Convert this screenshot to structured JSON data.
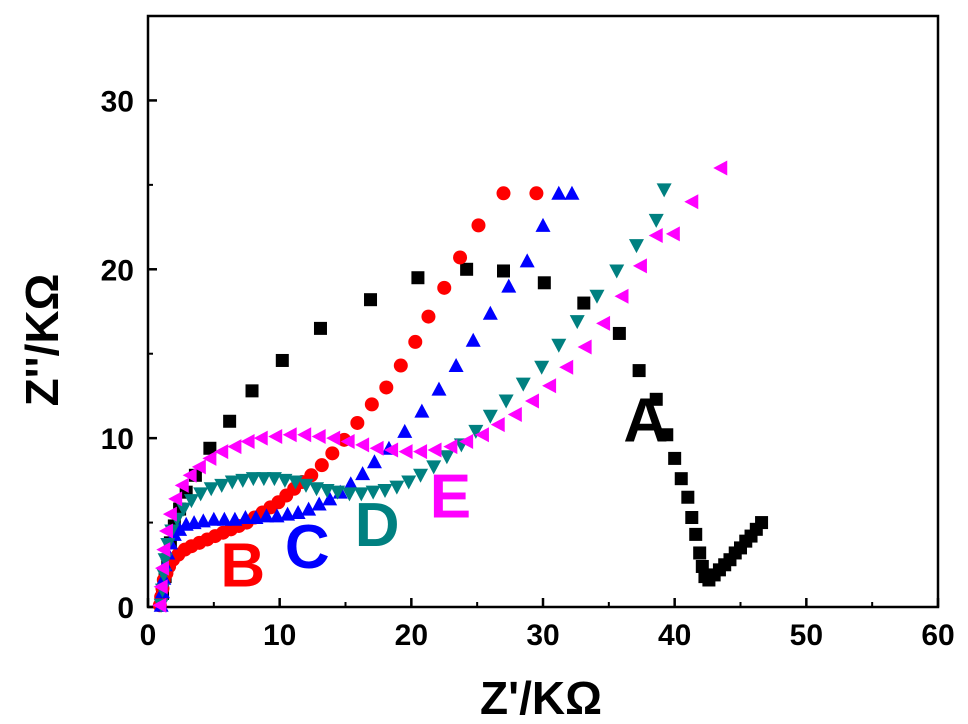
{
  "chart_data": {
    "type": "scatter",
    "title": "",
    "xlabel": "Z'/KΩ",
    "ylabel": "Z''/KΩ",
    "xlim": [
      0,
      60
    ],
    "ylim": [
      0,
      35
    ],
    "xticks": [
      "0",
      "10",
      "20",
      "30",
      "40",
      "50",
      "60"
    ],
    "yticks": [
      "0",
      "10",
      "20",
      "30"
    ],
    "grid": false,
    "legend": "none",
    "series": [
      {
        "name": "A",
        "color": "#000000",
        "marker": "square",
        "x": [
          1.1,
          1.3,
          1.5,
          1.7,
          2.0,
          2.4,
          2.9,
          3.6,
          4.7,
          6.2,
          7.9,
          10.2,
          13.1,
          16.9,
          20.5,
          24.2,
          27.0,
          30.1,
          33.1,
          35.8,
          37.3,
          38.6,
          39.4,
          40.0,
          40.5,
          41.0,
          41.3,
          41.6,
          41.9,
          42.1,
          42.3,
          42.6,
          43.0,
          43.4,
          43.8,
          44.2,
          44.6,
          45.0,
          45.4,
          45.8,
          46.2,
          46.6
        ],
        "y": [
          0.8,
          1.8,
          2.8,
          3.8,
          4.8,
          5.8,
          6.8,
          7.8,
          9.4,
          11.0,
          12.8,
          14.6,
          16.5,
          18.2,
          19.5,
          20.0,
          19.9,
          19.2,
          18.0,
          16.2,
          14.0,
          12.3,
          10.2,
          8.8,
          7.6,
          6.5,
          5.3,
          4.3,
          3.2,
          2.4,
          1.8,
          1.6,
          1.9,
          2.2,
          2.5,
          2.8,
          3.2,
          3.5,
          3.9,
          4.2,
          4.6,
          5.0
        ]
      },
      {
        "name": "B",
        "color": "#ff0000",
        "marker": "circle",
        "x": [
          0.9,
          1.0,
          1.1,
          1.2,
          1.4,
          1.6,
          1.9,
          2.3,
          2.8,
          3.3,
          3.9,
          4.5,
          5.1,
          5.7,
          6.3,
          6.9,
          7.5,
          8.1,
          8.7,
          9.3,
          9.9,
          10.5,
          11.1,
          11.7,
          12.4,
          13.2,
          14.0,
          14.9,
          15.9,
          17.0,
          18.1,
          19.2,
          20.3,
          21.3,
          22.5,
          23.7,
          25.1,
          27.0,
          29.5
        ],
        "y": [
          0.1,
          0.6,
          1.1,
          1.6,
          2.0,
          2.4,
          2.8,
          3.1,
          3.4,
          3.6,
          3.8,
          4.0,
          4.2,
          4.4,
          4.6,
          4.8,
          5.0,
          5.3,
          5.6,
          5.9,
          6.2,
          6.6,
          7.0,
          7.4,
          7.8,
          8.4,
          9.1,
          9.9,
          10.9,
          12.0,
          13.0,
          14.3,
          15.7,
          17.2,
          18.9,
          20.7,
          22.6,
          24.5,
          24.5
        ]
      },
      {
        "name": "C",
        "color": "#0000ff",
        "marker": "triangle-up",
        "x": [
          1.0,
          1.1,
          1.2,
          1.3,
          1.5,
          1.7,
          2.0,
          2.4,
          2.9,
          3.5,
          4.2,
          5.0,
          5.8,
          6.6,
          7.4,
          8.2,
          9.0,
          9.8,
          10.6,
          11.4,
          12.2,
          13.0,
          13.8,
          14.6,
          15.4,
          16.3,
          17.2,
          18.3,
          19.5,
          20.8,
          22.1,
          23.4,
          24.7,
          26.0,
          27.4,
          28.8,
          30.0,
          31.2,
          32.2
        ],
        "y": [
          0.1,
          0.9,
          1.7,
          2.5,
          3.2,
          3.8,
          4.3,
          4.6,
          4.9,
          5.0,
          5.1,
          5.2,
          5.2,
          5.2,
          5.3,
          5.3,
          5.4,
          5.4,
          5.5,
          5.6,
          5.8,
          6.1,
          6.4,
          6.8,
          7.3,
          7.9,
          8.6,
          9.4,
          10.4,
          11.6,
          12.9,
          14.3,
          15.8,
          17.4,
          19.0,
          20.5,
          22.6,
          24.5,
          24.5
        ]
      },
      {
        "name": "D",
        "color": "#008080",
        "marker": "triangle-down",
        "x": [
          1.0,
          1.1,
          1.2,
          1.3,
          1.5,
          1.8,
          2.2,
          2.7,
          3.3,
          4.0,
          4.8,
          5.6,
          6.4,
          7.2,
          8.0,
          8.8,
          9.6,
          10.4,
          11.2,
          12.0,
          12.8,
          13.6,
          14.4,
          15.3,
          16.2,
          17.1,
          18.0,
          18.9,
          19.8,
          20.7,
          21.7,
          22.7,
          23.8,
          24.9,
          26.0,
          27.2,
          28.5,
          29.9,
          31.2,
          32.6,
          34.1,
          35.6,
          37.1,
          38.6,
          39.2
        ],
        "y": [
          0.1,
          1.0,
          1.9,
          2.8,
          3.7,
          4.5,
          5.2,
          5.8,
          6.3,
          6.7,
          7.0,
          7.2,
          7.4,
          7.5,
          7.6,
          7.6,
          7.6,
          7.5,
          7.4,
          7.2,
          7.0,
          6.9,
          6.8,
          6.7,
          6.7,
          6.8,
          6.9,
          7.1,
          7.4,
          7.8,
          8.3,
          8.9,
          9.6,
          10.4,
          11.3,
          12.2,
          13.2,
          14.2,
          15.5,
          16.9,
          18.4,
          19.9,
          21.4,
          22.9,
          24.7
        ]
      },
      {
        "name": "E",
        "color": "#ff00ff",
        "marker": "triangle-left",
        "x": [
          0.9,
          1.0,
          1.1,
          1.2,
          1.4,
          1.7,
          2.1,
          2.6,
          3.2,
          3.9,
          4.7,
          5.6,
          6.6,
          7.6,
          8.6,
          9.7,
          10.8,
          11.9,
          13.0,
          14.1,
          15.2,
          16.3,
          17.4,
          18.5,
          19.6,
          20.7,
          21.8,
          23.0,
          24.2,
          25.4,
          26.6,
          27.9,
          29.2,
          30.5,
          31.8,
          33.2,
          34.6,
          36.0,
          37.4,
          38.6,
          39.9,
          41.3,
          43.5
        ],
        "y": [
          0.1,
          1.2,
          2.3,
          3.4,
          4.5,
          5.5,
          6.4,
          7.2,
          7.8,
          8.3,
          8.8,
          9.2,
          9.5,
          9.8,
          10.0,
          10.1,
          10.2,
          10.2,
          10.1,
          10.0,
          9.8,
          9.6,
          9.4,
          9.3,
          9.2,
          9.2,
          9.3,
          9.5,
          9.8,
          10.2,
          10.8,
          11.4,
          12.2,
          13.1,
          14.2,
          15.4,
          16.8,
          18.4,
          20.2,
          22.0,
          22.1,
          24.0,
          26.0
        ]
      }
    ],
    "annotations": [
      {
        "text": "A",
        "color": "#000000",
        "at": [
          36.1,
          9.8
        ]
      },
      {
        "text": "B",
        "color": "#ff0000",
        "at": [
          5.5,
          1.2
        ]
      },
      {
        "text": "C",
        "color": "#0000ff",
        "at": [
          10.4,
          2.3
        ]
      },
      {
        "text": "D",
        "color": "#008080",
        "at": [
          15.7,
          3.6
        ]
      },
      {
        "text": "E",
        "color": "#ff00ff",
        "at": [
          21.4,
          5.3
        ]
      }
    ]
  }
}
